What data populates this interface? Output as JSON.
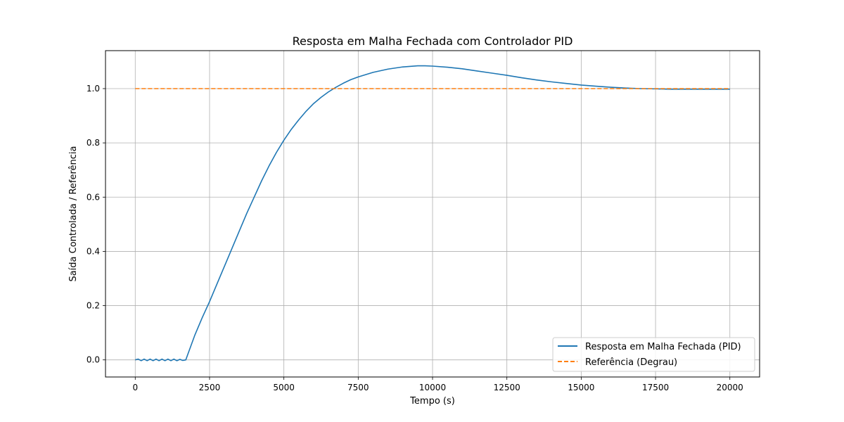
{
  "chart_data": {
    "type": "line",
    "title": "Resposta em Malha Fechada com Controlador PID",
    "xlabel": "Tempo (s)",
    "ylabel": "Saída Controlada / Referência",
    "xlim": [
      -1000,
      21000
    ],
    "ylim": [
      -0.063,
      1.14
    ],
    "xticks": [
      0,
      2500,
      5000,
      7500,
      10000,
      12500,
      15000,
      17500,
      20000
    ],
    "yticks": [
      0.0,
      0.2,
      0.4,
      0.6,
      0.8,
      1.0
    ],
    "xtick_labels": [
      "0",
      "2500",
      "5000",
      "7500",
      "10000",
      "12500",
      "15000",
      "17500",
      "20000"
    ],
    "ytick_labels": [
      "0.0",
      "0.2",
      "0.4",
      "0.6",
      "0.8",
      "1.0"
    ],
    "grid": true,
    "legend_position": "lower-right",
    "series": [
      {
        "name": "Resposta em Malha Fechada (PID)",
        "color": "#1f77b4",
        "style": "solid",
        "x": [
          0,
          100,
          200,
          300,
          400,
          500,
          600,
          700,
          800,
          900,
          1000,
          1100,
          1200,
          1300,
          1400,
          1500,
          1600,
          1700,
          1800,
          2000,
          2250,
          2500,
          2750,
          3000,
          3250,
          3500,
          3750,
          4000,
          4250,
          4500,
          4750,
          5000,
          5250,
          5500,
          5750,
          6000,
          6250,
          6500,
          6750,
          7000,
          7250,
          7500,
          8000,
          8500,
          9000,
          9500,
          9750,
          10000,
          10500,
          11000,
          11500,
          12000,
          12500,
          13000,
          13500,
          14000,
          14500,
          15000,
          15500,
          16000,
          16500,
          17000,
          17500,
          18000,
          18500,
          19000,
          19500,
          20000
        ],
        "y": [
          0.0,
          0.003,
          -0.003,
          0.003,
          -0.003,
          0.003,
          -0.003,
          0.003,
          -0.003,
          0.003,
          -0.003,
          0.003,
          -0.003,
          0.003,
          -0.003,
          0.002,
          -0.002,
          0.0,
          0.03,
          0.09,
          0.155,
          0.215,
          0.28,
          0.345,
          0.41,
          0.475,
          0.54,
          0.6,
          0.66,
          0.715,
          0.765,
          0.81,
          0.85,
          0.885,
          0.917,
          0.945,
          0.968,
          0.988,
          1.005,
          1.02,
          1.033,
          1.043,
          1.06,
          1.072,
          1.08,
          1.084,
          1.084,
          1.083,
          1.079,
          1.073,
          1.065,
          1.057,
          1.049,
          1.04,
          1.032,
          1.025,
          1.019,
          1.013,
          1.009,
          1.005,
          1.002,
          1.0,
          0.999,
          0.998,
          0.998,
          0.998,
          0.998,
          0.998
        ]
      },
      {
        "name": "Referência (Degrau)",
        "color": "#ff7f0e",
        "style": "dashed",
        "x": [
          0,
          20000
        ],
        "y": [
          1.0,
          1.0
        ]
      }
    ]
  }
}
